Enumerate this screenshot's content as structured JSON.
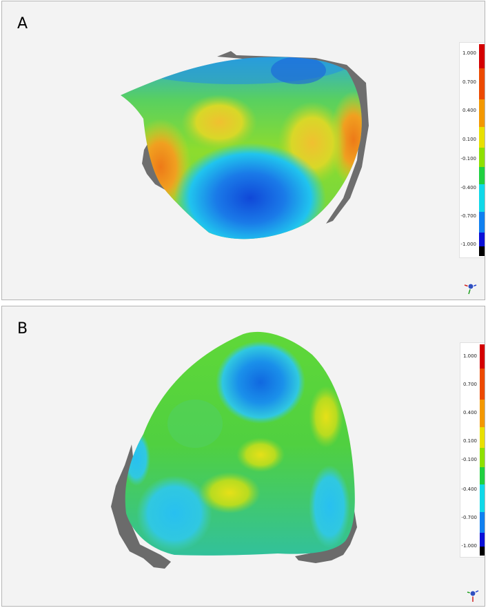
{
  "panels": [
    {
      "label": "A",
      "legend": {
        "ticks": [
          "1.000",
          "0.700",
          "0.400",
          "0.100",
          "-0.100",
          "-0.400",
          "-0.700",
          "-1.000"
        ]
      }
    },
    {
      "label": "B",
      "legend": {
        "ticks": [
          "1.000",
          "0.700",
          "0.400",
          "0.100",
          "-0.100",
          "-0.400",
          "-0.700",
          "-1.000"
        ]
      }
    }
  ],
  "colors": {
    "scale": [
      "#d40000",
      "#f39000",
      "#f3e400",
      "#9be000",
      "#20d040",
      "#10d8e8",
      "#1080f0",
      "#0a10d8",
      "#000000"
    ],
    "shadow_mesh": "#6b6b6b"
  },
  "icon_names": [
    "axis-triad-icon"
  ]
}
